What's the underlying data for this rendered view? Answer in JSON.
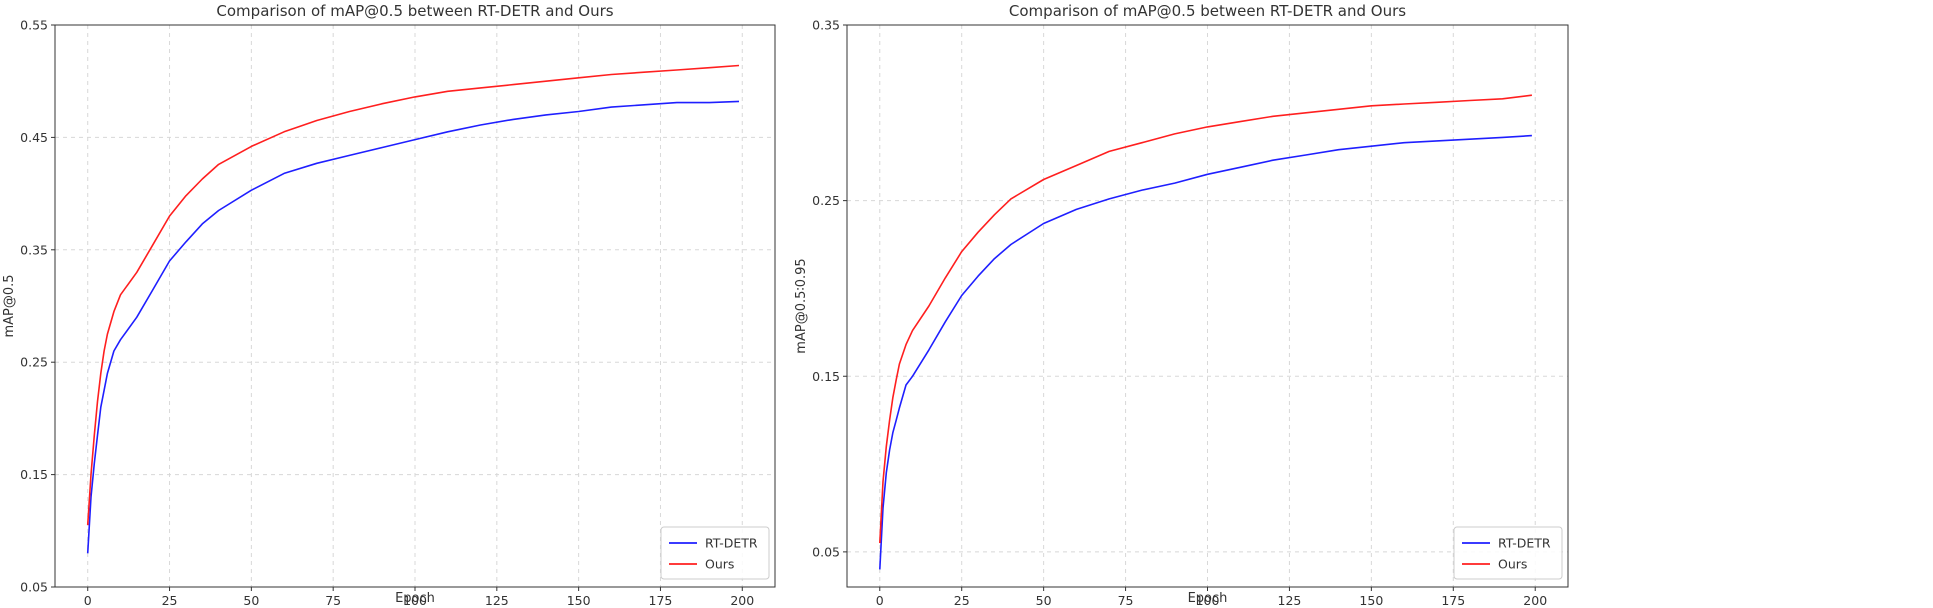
{
  "chart_data": [
    {
      "type": "line",
      "title": "Comparison of mAP@0.5 between RT-DETR and Ours",
      "xlabel": "Epoch",
      "ylabel": "mAP@0.5",
      "xlim": [
        -10,
        210
      ],
      "ylim": [
        0.05,
        0.55
      ],
      "xticks": [
        0,
        25,
        50,
        75,
        100,
        125,
        150,
        175,
        200
      ],
      "yticks": [
        "0.05",
        "0.15",
        "0.25",
        "0.35",
        "0.45",
        "0.55"
      ],
      "grid": true,
      "legend_position": "bottom-right",
      "series": [
        {
          "name": "RT-DETR",
          "color": "#1f1fff",
          "x": [
            0,
            1,
            2,
            3,
            4,
            5,
            6,
            8,
            10,
            15,
            20,
            25,
            30,
            35,
            40,
            50,
            60,
            70,
            80,
            90,
            100,
            110,
            120,
            130,
            140,
            150,
            160,
            170,
            180,
            190,
            199
          ],
          "y": [
            0.08,
            0.13,
            0.16,
            0.185,
            0.21,
            0.225,
            0.24,
            0.26,
            0.27,
            0.29,
            0.315,
            0.34,
            0.357,
            0.373,
            0.385,
            0.403,
            0.418,
            0.427,
            0.434,
            0.441,
            0.448,
            0.455,
            0.461,
            0.466,
            0.47,
            0.473,
            0.477,
            0.479,
            0.481,
            0.481,
            0.482
          ]
        },
        {
          "name": "Ours",
          "color": "#ff1f1f",
          "x": [
            0,
            1,
            2,
            3,
            4,
            5,
            6,
            8,
            10,
            15,
            20,
            25,
            30,
            35,
            40,
            50,
            60,
            70,
            80,
            90,
            100,
            110,
            120,
            130,
            140,
            150,
            160,
            170,
            180,
            190,
            199
          ],
          "y": [
            0.105,
            0.15,
            0.185,
            0.215,
            0.24,
            0.26,
            0.275,
            0.295,
            0.31,
            0.33,
            0.355,
            0.38,
            0.398,
            0.413,
            0.426,
            0.442,
            0.455,
            0.465,
            0.473,
            0.48,
            0.486,
            0.491,
            0.494,
            0.497,
            0.5,
            0.503,
            0.506,
            0.508,
            0.51,
            0.512,
            0.514
          ]
        }
      ]
    },
    {
      "type": "line",
      "title": "Comparison of mAP@0.5 between RT-DETR and Ours",
      "xlabel": "Epoch",
      "ylabel": "mAP@0.5∶0.95",
      "xlim": [
        -10,
        210
      ],
      "ylim": [
        0.03,
        0.35
      ],
      "xticks": [
        0,
        25,
        50,
        75,
        100,
        125,
        150,
        175,
        200
      ],
      "yticks": [
        "0.05",
        "0.15",
        "0.25",
        "0.35"
      ],
      "grid": true,
      "legend_position": "bottom-right",
      "series": [
        {
          "name": "RT-DETR",
          "color": "#1f1fff",
          "x": [
            0,
            1,
            2,
            3,
            4,
            5,
            6,
            8,
            10,
            15,
            20,
            25,
            30,
            35,
            40,
            50,
            60,
            70,
            80,
            90,
            100,
            110,
            120,
            130,
            140,
            150,
            160,
            170,
            180,
            190,
            199
          ],
          "y": [
            0.04,
            0.075,
            0.095,
            0.108,
            0.118,
            0.125,
            0.132,
            0.145,
            0.15,
            0.165,
            0.181,
            0.196,
            0.207,
            0.217,
            0.225,
            0.237,
            0.245,
            0.251,
            0.256,
            0.26,
            0.265,
            0.269,
            0.273,
            0.276,
            0.279,
            0.281,
            0.283,
            0.284,
            0.285,
            0.286,
            0.287
          ]
        },
        {
          "name": "Ours",
          "color": "#ff1f1f",
          "x": [
            0,
            1,
            2,
            3,
            4,
            5,
            6,
            8,
            10,
            15,
            20,
            25,
            30,
            35,
            40,
            50,
            60,
            70,
            80,
            90,
            100,
            110,
            120,
            130,
            140,
            150,
            160,
            170,
            180,
            190,
            199
          ],
          "y": [
            0.055,
            0.09,
            0.11,
            0.125,
            0.138,
            0.148,
            0.157,
            0.168,
            0.176,
            0.19,
            0.206,
            0.221,
            0.232,
            0.242,
            0.251,
            0.262,
            0.27,
            0.278,
            0.283,
            0.288,
            0.292,
            0.295,
            0.298,
            0.3,
            0.302,
            0.304,
            0.305,
            0.306,
            0.307,
            0.308,
            0.31
          ]
        }
      ]
    }
  ]
}
